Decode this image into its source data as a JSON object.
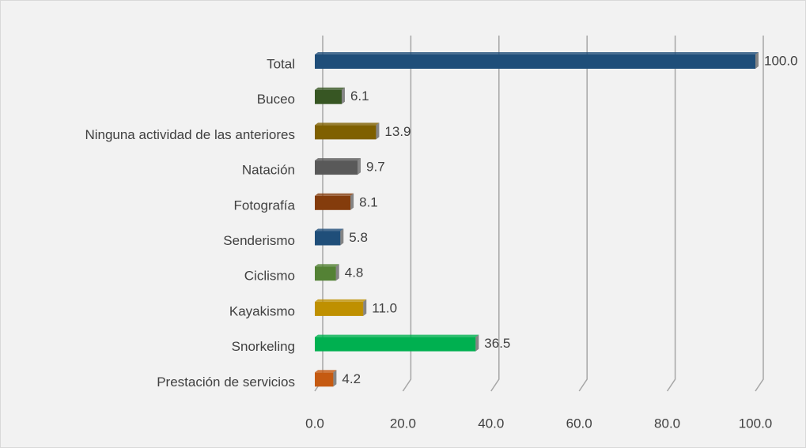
{
  "chart_data": {
    "type": "bar",
    "orientation": "horizontal",
    "categories": [
      "Total",
      "Buceo",
      "Ninguna actividad de las anteriores",
      "Natación",
      "Fotografía",
      "Senderismo",
      "Ciclismo",
      "Kayakismo",
      "Snorkeling",
      "Prestación de servicios"
    ],
    "values": [
      100.0,
      6.1,
      13.9,
      9.7,
      8.1,
      5.8,
      4.8,
      11.0,
      36.5,
      4.2
    ],
    "value_labels": [
      "100.0",
      "6.1",
      "13.9",
      "9.7",
      "8.1",
      "5.8",
      "4.8",
      "11.0",
      "36.5",
      "4.2"
    ],
    "colors": [
      "#1f4e79",
      "#375623",
      "#7f6000",
      "#595959",
      "#843c0c",
      "#1f4e79",
      "#548235",
      "#bf9000",
      "#00b050",
      "#c55a11"
    ],
    "xlim": [
      0,
      100
    ],
    "xticks": [
      {
        "value": 0,
        "label": "0.0"
      },
      {
        "value": 20,
        "label": "20.0"
      },
      {
        "value": 40,
        "label": "40.0"
      },
      {
        "value": 60,
        "label": "60.0"
      },
      {
        "value": 80,
        "label": "80.0"
      },
      {
        "value": 100,
        "label": "100.0"
      }
    ],
    "grid": true
  }
}
